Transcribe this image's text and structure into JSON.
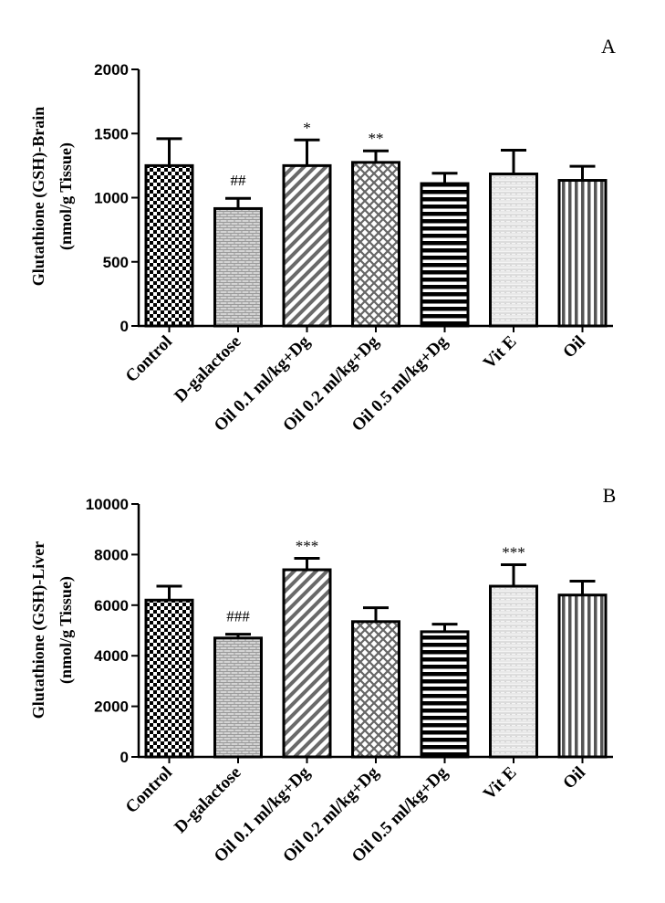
{
  "patterns": [
    "checker",
    "brick",
    "diagonal",
    "crosshatch",
    "hstripes",
    "dots",
    "vstripes"
  ],
  "chart_data": [
    {
      "type": "bar",
      "panel_label": "A",
      "title": "",
      "ylabel_line1": "Glutathione (GSH)-Brain",
      "ylabel_line2": "(nmol/g Tissue)",
      "xlabel": "",
      "ylim": [
        0,
        2000
      ],
      "yticks": [
        0,
        500,
        1000,
        1500,
        2000
      ],
      "categories": [
        "Control",
        "D-galactose",
        "Oil 0.1 ml/kg+Dg",
        "Oil 0.2 ml/kg+Dg",
        "Oil 0.5 ml/kg+Dg",
        "Vit E",
        "Oil"
      ],
      "values": [
        1250,
        915,
        1250,
        1275,
        1110,
        1185,
        1135
      ],
      "errors": [
        210,
        80,
        200,
        90,
        80,
        185,
        110
      ],
      "significance": [
        "",
        "##",
        "*",
        "**",
        "",
        "",
        ""
      ]
    },
    {
      "type": "bar",
      "panel_label": "B",
      "title": "",
      "ylabel_line1": "Glutathione  (GSH)-Liver",
      "ylabel_line2": "(nmol/g Tissue)",
      "xlabel": "",
      "ylim": [
        0,
        10000
      ],
      "yticks": [
        0,
        2000,
        4000,
        6000,
        8000,
        10000
      ],
      "categories": [
        "Control",
        "D-galactose",
        "Oil 0.1 ml/kg+Dg",
        "Oil 0.2 ml/kg+Dg",
        "Oil 0.5 ml/kg+Dg",
        "Vit E",
        "Oil"
      ],
      "values": [
        6200,
        4700,
        7400,
        5350,
        4950,
        6750,
        6400
      ],
      "errors": [
        550,
        150,
        450,
        550,
        300,
        850,
        550
      ],
      "significance": [
        "",
        "###",
        "***",
        "",
        "",
        "***",
        ""
      ]
    }
  ]
}
